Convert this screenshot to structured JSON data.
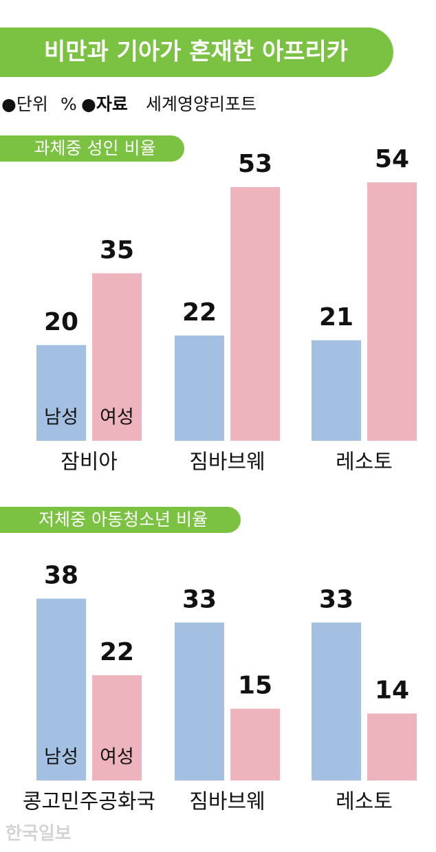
{
  "title": "비만과 기아가 혼재한 아프리카",
  "unit_label": "●단위",
  "unit": "%",
  "source_label": "●자료",
  "source": "세계영양리포트",
  "credit": "한국일보",
  "chart_data": [
    {
      "type": "bar",
      "title": "과체중 성인 비율",
      "categories": [
        "잠비아",
        "짐바브웨",
        "레소토"
      ],
      "series": [
        {
          "name": "남성",
          "color": "#a3c0e2",
          "values": [
            20,
            22,
            21
          ]
        },
        {
          "name": "여성",
          "color": "#eeb4bd",
          "values": [
            35,
            53,
            54
          ]
        }
      ]
    },
    {
      "type": "bar",
      "title": "저체중 아동청소년 비율",
      "categories": [
        "콩고민주공화국",
        "짐바브웨",
        "레소토"
      ],
      "series": [
        {
          "name": "남성",
          "color": "#a3c0e2",
          "values": [
            38,
            33,
            33
          ]
        },
        {
          "name": "여성",
          "color": "#eeb4bd",
          "values": [
            22,
            15,
            14
          ]
        }
      ]
    }
  ]
}
